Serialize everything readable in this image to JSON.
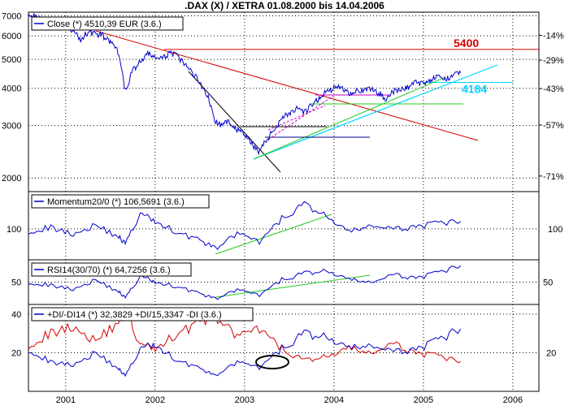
{
  "chart_data": [
    {
      "type": "line",
      "title": ".DAX (X) / XETRA 01.08.2000 bis 14.04.2006",
      "legend": "Close (*) 4510,39 EUR (3.6.)",
      "xlabel": "",
      "ylabel": "",
      "x_ticks": [
        "2001",
        "2002",
        "2003",
        "2004",
        "2005",
        "2006"
      ],
      "y_ticks_left": [
        "7000",
        "6000",
        "5000",
        "4000",
        "3000",
        "2000"
      ],
      "y_ticks_right": [
        "-14%",
        "-29%",
        "-43%",
        "-57%",
        "-71%"
      ],
      "y_scale": "log",
      "ylim": [
        1800,
        7200
      ],
      "grid": true,
      "series": [
        {
          "name": "Close (*) 4510,39 EUR (3.6.)",
          "x": [
            "2000-08",
            "2000-09",
            "2000-10",
            "2000-11",
            "2000-12",
            "2001-01",
            "2001-02",
            "2001-03",
            "2001-04",
            "2001-05",
            "2001-06",
            "2001-07",
            "2001-08",
            "2001-09",
            "2001-10",
            "2001-11",
            "2001-12",
            "2002-01",
            "2002-02",
            "2002-03",
            "2002-04",
            "2002-05",
            "2002-06",
            "2002-07",
            "2002-08",
            "2002-09",
            "2002-10",
            "2002-11",
            "2002-12",
            "2003-01",
            "2003-02",
            "2003-03",
            "2003-04",
            "2003-05",
            "2003-06",
            "2003-07",
            "2003-08",
            "2003-09",
            "2003-10",
            "2003-11",
            "2003-12",
            "2004-01",
            "2004-02",
            "2004-03",
            "2004-04",
            "2004-05",
            "2004-06",
            "2004-07",
            "2004-08",
            "2004-09",
            "2004-10",
            "2004-11",
            "2004-12",
            "2005-01",
            "2005-02",
            "2005-03",
            "2005-04",
            "2005-05",
            "2005-06"
          ],
          "values": [
            7200,
            6900,
            6800,
            6500,
            6400,
            6600,
            6200,
            5800,
            6200,
            6100,
            6000,
            5700,
            5300,
            3900,
            4600,
            4900,
            5200,
            5100,
            5000,
            5300,
            5100,
            4800,
            4500,
            4200,
            3800,
            3100,
            3000,
            3100,
            2900,
            2800,
            2600,
            2450,
            2700,
            2900,
            3200,
            3300,
            3400,
            3300,
            3500,
            3700,
            3900,
            4000,
            4050,
            3850,
            3950,
            3900,
            4000,
            3850,
            3700,
            3900,
            3950,
            4050,
            4200,
            4150,
            4300,
            4350,
            4250,
            4500,
            4510
          ]
        }
      ],
      "annotations": [
        "5400",
        "4184"
      ],
      "reference_lines": [
        {
          "label": "5400",
          "value": 5400,
          "color": "#d40000"
        },
        {
          "label": "4184",
          "value": 4184,
          "color": "#00d4ff"
        }
      ]
    },
    {
      "type": "line",
      "legend": "Momentum20/0 (*) 106,5691 (3.6.)",
      "y_ticks_left": [
        "100"
      ],
      "y_ticks_right": [
        "100"
      ],
      "ylim": [
        75,
        130
      ],
      "series": [
        {
          "name": "Momentum20/0 (*) 106,5691 (3.6.)",
          "x": [
            "2000-08",
            "2000-11",
            "2001-02",
            "2001-05",
            "2001-08",
            "2001-09",
            "2001-11",
            "2002-01",
            "2002-04",
            "2002-07",
            "2002-09",
            "2002-12",
            "2003-03",
            "2003-06",
            "2003-09",
            "2003-12",
            "2004-03",
            "2004-06",
            "2004-09",
            "2004-12",
            "2005-03",
            "2005-06"
          ],
          "values": [
            98,
            101,
            96,
            103,
            94,
            88,
            112,
            106,
            97,
            91,
            84,
            96,
            89,
            108,
            120,
            110,
            97,
            103,
            99,
            102,
            104,
            106
          ]
        }
      ]
    },
    {
      "type": "line",
      "legend": "RSI14(30/70) (*) 64,7256 (3.6.)",
      "y_ticks_left": [
        "50"
      ],
      "y_ticks_right": [
        "50"
      ],
      "ylim": [
        30,
        70
      ],
      "series": [
        {
          "name": "RSI14(30/70) (*) 64,7256 (3.6.)",
          "x": [
            "2000-08",
            "2000-11",
            "2001-02",
            "2001-05",
            "2001-08",
            "2001-09",
            "2001-11",
            "2002-01",
            "2002-04",
            "2002-07",
            "2002-09",
            "2002-12",
            "2003-03",
            "2003-06",
            "2003-09",
            "2003-12",
            "2004-03",
            "2004-06",
            "2004-09",
            "2004-12",
            "2005-03",
            "2005-06"
          ],
          "values": [
            50,
            47,
            44,
            52,
            42,
            36,
            55,
            50,
            46,
            40,
            35,
            43,
            38,
            52,
            58,
            60,
            52,
            50,
            56,
            54,
            58,
            64.7
          ]
        }
      ]
    },
    {
      "type": "line",
      "legend": "+DI/-DI14 (*) 32,3829 +DI/15,3347 -DI (3.6.)",
      "y_ticks_left": [
        "40",
        "20"
      ],
      "y_ticks_right": [
        "20"
      ],
      "ylim": [
        0,
        45
      ],
      "series": [
        {
          "name": "+DI",
          "x": [
            "2000-08",
            "2000-11",
            "2001-02",
            "2001-05",
            "2001-08",
            "2001-09",
            "2001-11",
            "2002-01",
            "2002-04",
            "2002-07",
            "2002-09",
            "2002-12",
            "2003-03",
            "2003-06",
            "2003-09",
            "2003-12",
            "2004-03",
            "2004-06",
            "2004-09",
            "2004-12",
            "2005-03",
            "2005-06"
          ],
          "values": [
            22,
            15,
            14,
            20,
            12,
            8,
            22,
            24,
            16,
            12,
            8,
            15,
            12,
            22,
            30,
            28,
            22,
            24,
            20,
            22,
            26,
            32.4
          ]
        },
        {
          "name": "-DI",
          "x": [
            "2000-08",
            "2000-11",
            "2001-02",
            "2001-05",
            "2001-08",
            "2001-09",
            "2001-11",
            "2002-01",
            "2002-04",
            "2002-07",
            "2002-09",
            "2002-12",
            "2003-03",
            "2003-06",
            "2003-09",
            "2003-12",
            "2004-03",
            "2004-06",
            "2004-09",
            "2004-12",
            "2005-03",
            "2005-06"
          ],
          "values": [
            24,
            30,
            34,
            26,
            36,
            42,
            24,
            22,
            30,
            36,
            40,
            28,
            32,
            22,
            16,
            18,
            22,
            20,
            24,
            20,
            18,
            15.3
          ]
        }
      ]
    }
  ]
}
